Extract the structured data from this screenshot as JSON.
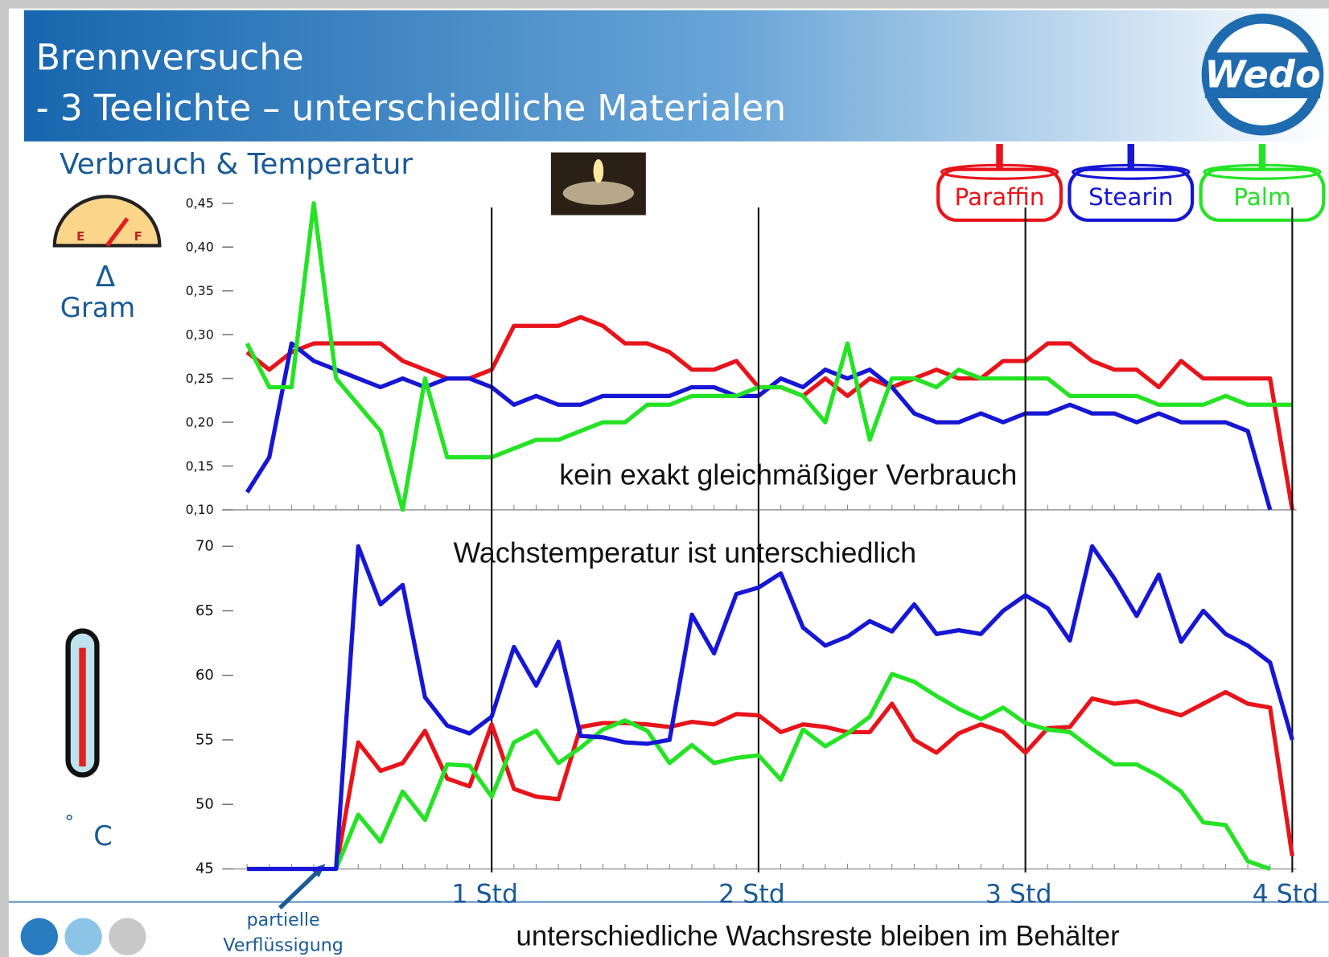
{
  "header": {
    "title": "Brennversuche",
    "subtitle": "- 3 Teelichte – unterschiedliche Materialen",
    "logo": "Wedo"
  },
  "section_title": "Verbrauch & Temperatur",
  "icons": {
    "gauge_e": "E",
    "gauge_f": "F",
    "delta": "Δ",
    "gram": "Gram",
    "degree": "°",
    "celsius": "C"
  },
  "chart_data": [
    {
      "type": "line",
      "annotation": "kein exakt gleichmäßiger Verbrauch",
      "legend": "top-right",
      "x": [
        5,
        10,
        15,
        20,
        25,
        30,
        35,
        40,
        45,
        50,
        55,
        60,
        65,
        70,
        75,
        80,
        85,
        90,
        95,
        100,
        105,
        110,
        115,
        120,
        125,
        130,
        135,
        140,
        145,
        150,
        155,
        160,
        165,
        170,
        175,
        180,
        185,
        190,
        195,
        200,
        205,
        210,
        215,
        220,
        225,
        230,
        235,
        240
      ],
      "xlim": [
        0,
        240
      ],
      "ylim": [
        0.1,
        0.45
      ],
      "yticks": [
        {
          "value": 0.1,
          "label": "0,10"
        },
        {
          "value": 0.15,
          "label": "0,15"
        },
        {
          "value": 0.2,
          "label": "0,20"
        },
        {
          "value": 0.25,
          "label": "0,25"
        },
        {
          "value": 0.3,
          "label": "0,30"
        },
        {
          "value": 0.35,
          "label": "0,35"
        },
        {
          "value": 0.4,
          "label": "0,40"
        },
        {
          "value": 0.45,
          "label": "0,45"
        }
      ],
      "series": [
        {
          "name": "Paraffin",
          "color": "#e8141b",
          "values": [
            0.28,
            0.26,
            0.28,
            0.29,
            0.29,
            0.29,
            0.29,
            0.27,
            0.26,
            0.25,
            0.25,
            0.26,
            0.31,
            0.31,
            0.31,
            0.32,
            0.31,
            0.29,
            0.29,
            0.28,
            0.26,
            0.26,
            0.27,
            0.24,
            0.24,
            0.23,
            0.25,
            0.23,
            0.25,
            0.24,
            0.25,
            0.26,
            0.25,
            0.25,
            0.27,
            0.27,
            0.29,
            0.29,
            0.27,
            0.26,
            0.26,
            0.24,
            0.27,
            0.25,
            0.25,
            0.25,
            0.25,
            0.1
          ]
        },
        {
          "name": "Stearin",
          "color": "#1616d4",
          "values": [
            0.12,
            0.16,
            0.29,
            0.27,
            0.26,
            0.25,
            0.24,
            0.25,
            0.24,
            0.25,
            0.25,
            0.24,
            0.22,
            0.23,
            0.22,
            0.22,
            0.23,
            0.23,
            0.23,
            0.23,
            0.24,
            0.24,
            0.23,
            0.23,
            0.25,
            0.24,
            0.26,
            0.25,
            0.26,
            0.24,
            0.21,
            0.2,
            0.2,
            0.21,
            0.2,
            0.21,
            0.21,
            0.22,
            0.21,
            0.21,
            0.2,
            0.21,
            0.2,
            0.2,
            0.2,
            0.19,
            0.1,
            null
          ]
        },
        {
          "name": "Palm",
          "color": "#24e324",
          "values": [
            0.29,
            0.24,
            0.24,
            0.45,
            0.25,
            0.22,
            0.19,
            0.1,
            0.25,
            0.16,
            0.16,
            0.16,
            0.17,
            0.18,
            0.18,
            0.19,
            0.2,
            0.2,
            0.22,
            0.22,
            0.23,
            0.23,
            0.23,
            0.24,
            0.24,
            0.23,
            0.2,
            0.29,
            0.18,
            0.25,
            0.25,
            0.24,
            0.26,
            0.25,
            0.25,
            0.25,
            0.25,
            0.23,
            0.23,
            0.23,
            0.23,
            0.22,
            0.22,
            0.22,
            0.23,
            0.22,
            0.22,
            0.22
          ]
        }
      ]
    },
    {
      "type": "line",
      "annotation": "Wachstemperatur ist unterschiedlich",
      "x": [
        5,
        10,
        15,
        20,
        25,
        30,
        35,
        40,
        45,
        50,
        55,
        60,
        65,
        70,
        75,
        80,
        85,
        90,
        95,
        100,
        105,
        110,
        115,
        120,
        125,
        130,
        135,
        140,
        145,
        150,
        155,
        160,
        165,
        170,
        175,
        180,
        185,
        190,
        195,
        200,
        205,
        210,
        215,
        220,
        225,
        230,
        235,
        240
      ],
      "xlim": [
        0,
        240
      ],
      "ylim": [
        45,
        70
      ],
      "yticks": [
        45,
        50,
        55,
        60,
        65,
        70
      ],
      "xticks": [
        {
          "value": 60,
          "label": "1 Std"
        },
        {
          "value": 120,
          "label": "2 Std"
        },
        {
          "value": 180,
          "label": "3 Std"
        },
        {
          "value": 240,
          "label": "4 Std"
        }
      ],
      "series": [
        {
          "color": "#e8141b",
          "values": [
            null,
            null,
            null,
            null,
            45,
            54.8,
            52.6,
            53.2,
            55.7,
            52,
            51.4,
            56.2,
            51.2,
            50.6,
            50.4,
            56,
            56.3,
            56.3,
            56.2,
            56,
            56.4,
            56.2,
            57,
            56.9,
            55.6,
            56.2,
            56,
            55.6,
            55.6,
            57.8,
            55,
            54,
            55.5,
            56.2,
            55.6,
            54,
            55.9,
            56,
            58.2,
            57.8,
            58,
            57.4,
            56.9,
            57.8,
            58.7,
            57.8,
            57.5,
            46
          ]
        },
        {
          "color": "#24e324",
          "values": [
            null,
            null,
            null,
            null,
            45,
            49.2,
            47.1,
            51,
            48.8,
            53.1,
            53,
            50.6,
            54.8,
            55.7,
            53.2,
            54.4,
            55.8,
            56.5,
            55.7,
            53.2,
            54.6,
            53.2,
            53.6,
            53.8,
            51.9,
            55.8,
            54.5,
            55.5,
            56.8,
            60.1,
            59.5,
            58.4,
            57.4,
            56.6,
            57.5,
            56.3,
            55.8,
            55.6,
            54.3,
            53.1,
            53.1,
            52.2,
            51,
            48.6,
            48.4,
            45.6,
            45,
            null
          ]
        },
        {
          "color": "#1616d4",
          "values": [
            45,
            45,
            45,
            45,
            45,
            70,
            65.5,
            67,
            58.3,
            56.1,
            55.5,
            56.8,
            62.2,
            59.2,
            62.6,
            55.3,
            55.2,
            54.8,
            54.7,
            55,
            64.7,
            61.7,
            66.3,
            66.8,
            67.9,
            63.7,
            62.3,
            63,
            64.2,
            63.4,
            65.5,
            63.2,
            63.5,
            63.2,
            65,
            66.2,
            65.2,
            62.7,
            70,
            67.5,
            64.6,
            67.8,
            62.6,
            65,
            63.2,
            62.3,
            61,
            55
          ]
        }
      ]
    }
  ],
  "callout": [
    "partielle",
    "Verflüssigung"
  ],
  "footer_note": "unterschiedliche Wachsreste bleiben im Behälter"
}
